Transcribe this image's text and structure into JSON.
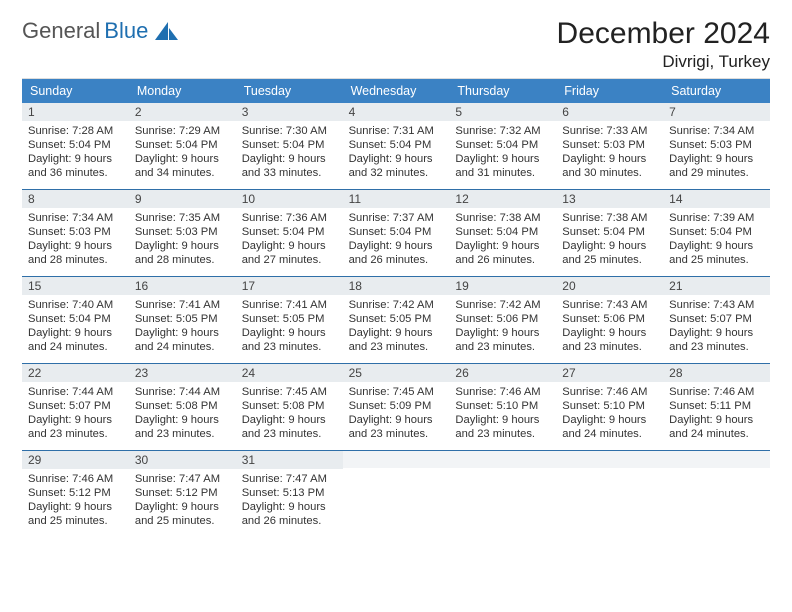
{
  "brand": {
    "word1": "General",
    "word2": "Blue"
  },
  "title": "December 2024",
  "location": "Divrigi, Turkey",
  "colors": {
    "accent": "#3b82c4",
    "daynum_bg": "#e8ecef",
    "row_border": "#2f6fa8",
    "background": "#ffffff",
    "text": "#222222"
  },
  "fonts": {
    "title_pt": 30,
    "location_pt": 17,
    "dow_pt": 12.5,
    "body_pt": 11.2
  },
  "dow": [
    "Sunday",
    "Monday",
    "Tuesday",
    "Wednesday",
    "Thursday",
    "Friday",
    "Saturday"
  ],
  "weeks": [
    [
      {
        "n": "1",
        "sr": "7:28 AM",
        "ss": "5:04 PM",
        "dh": "9",
        "dm": "36"
      },
      {
        "n": "2",
        "sr": "7:29 AM",
        "ss": "5:04 PM",
        "dh": "9",
        "dm": "34"
      },
      {
        "n": "3",
        "sr": "7:30 AM",
        "ss": "5:04 PM",
        "dh": "9",
        "dm": "33"
      },
      {
        "n": "4",
        "sr": "7:31 AM",
        "ss": "5:04 PM",
        "dh": "9",
        "dm": "32"
      },
      {
        "n": "5",
        "sr": "7:32 AM",
        "ss": "5:04 PM",
        "dh": "9",
        "dm": "31"
      },
      {
        "n": "6",
        "sr": "7:33 AM",
        "ss": "5:03 PM",
        "dh": "9",
        "dm": "30"
      },
      {
        "n": "7",
        "sr": "7:34 AM",
        "ss": "5:03 PM",
        "dh": "9",
        "dm": "29"
      }
    ],
    [
      {
        "n": "8",
        "sr": "7:34 AM",
        "ss": "5:03 PM",
        "dh": "9",
        "dm": "28"
      },
      {
        "n": "9",
        "sr": "7:35 AM",
        "ss": "5:03 PM",
        "dh": "9",
        "dm": "28"
      },
      {
        "n": "10",
        "sr": "7:36 AM",
        "ss": "5:04 PM",
        "dh": "9",
        "dm": "27"
      },
      {
        "n": "11",
        "sr": "7:37 AM",
        "ss": "5:04 PM",
        "dh": "9",
        "dm": "26"
      },
      {
        "n": "12",
        "sr": "7:38 AM",
        "ss": "5:04 PM",
        "dh": "9",
        "dm": "26"
      },
      {
        "n": "13",
        "sr": "7:38 AM",
        "ss": "5:04 PM",
        "dh": "9",
        "dm": "25"
      },
      {
        "n": "14",
        "sr": "7:39 AM",
        "ss": "5:04 PM",
        "dh": "9",
        "dm": "25"
      }
    ],
    [
      {
        "n": "15",
        "sr": "7:40 AM",
        "ss": "5:04 PM",
        "dh": "9",
        "dm": "24"
      },
      {
        "n": "16",
        "sr": "7:41 AM",
        "ss": "5:05 PM",
        "dh": "9",
        "dm": "24"
      },
      {
        "n": "17",
        "sr": "7:41 AM",
        "ss": "5:05 PM",
        "dh": "9",
        "dm": "23"
      },
      {
        "n": "18",
        "sr": "7:42 AM",
        "ss": "5:05 PM",
        "dh": "9",
        "dm": "23"
      },
      {
        "n": "19",
        "sr": "7:42 AM",
        "ss": "5:06 PM",
        "dh": "9",
        "dm": "23"
      },
      {
        "n": "20",
        "sr": "7:43 AM",
        "ss": "5:06 PM",
        "dh": "9",
        "dm": "23"
      },
      {
        "n": "21",
        "sr": "7:43 AM",
        "ss": "5:07 PM",
        "dh": "9",
        "dm": "23"
      }
    ],
    [
      {
        "n": "22",
        "sr": "7:44 AM",
        "ss": "5:07 PM",
        "dh": "9",
        "dm": "23"
      },
      {
        "n": "23",
        "sr": "7:44 AM",
        "ss": "5:08 PM",
        "dh": "9",
        "dm": "23"
      },
      {
        "n": "24",
        "sr": "7:45 AM",
        "ss": "5:08 PM",
        "dh": "9",
        "dm": "23"
      },
      {
        "n": "25",
        "sr": "7:45 AM",
        "ss": "5:09 PM",
        "dh": "9",
        "dm": "23"
      },
      {
        "n": "26",
        "sr": "7:46 AM",
        "ss": "5:10 PM",
        "dh": "9",
        "dm": "23"
      },
      {
        "n": "27",
        "sr": "7:46 AM",
        "ss": "5:10 PM",
        "dh": "9",
        "dm": "24"
      },
      {
        "n": "28",
        "sr": "7:46 AM",
        "ss": "5:11 PM",
        "dh": "9",
        "dm": "24"
      }
    ],
    [
      {
        "n": "29",
        "sr": "7:46 AM",
        "ss": "5:12 PM",
        "dh": "9",
        "dm": "25"
      },
      {
        "n": "30",
        "sr": "7:47 AM",
        "ss": "5:12 PM",
        "dh": "9",
        "dm": "25"
      },
      {
        "n": "31",
        "sr": "7:47 AM",
        "ss": "5:13 PM",
        "dh": "9",
        "dm": "26"
      },
      null,
      null,
      null,
      null
    ]
  ],
  "labels": {
    "sunrise_prefix": "Sunrise: ",
    "sunset_prefix": "Sunset: ",
    "daylight_prefix": "Daylight: ",
    "hours_word": " hours",
    "and_word": "and ",
    "minutes_word": " minutes."
  }
}
